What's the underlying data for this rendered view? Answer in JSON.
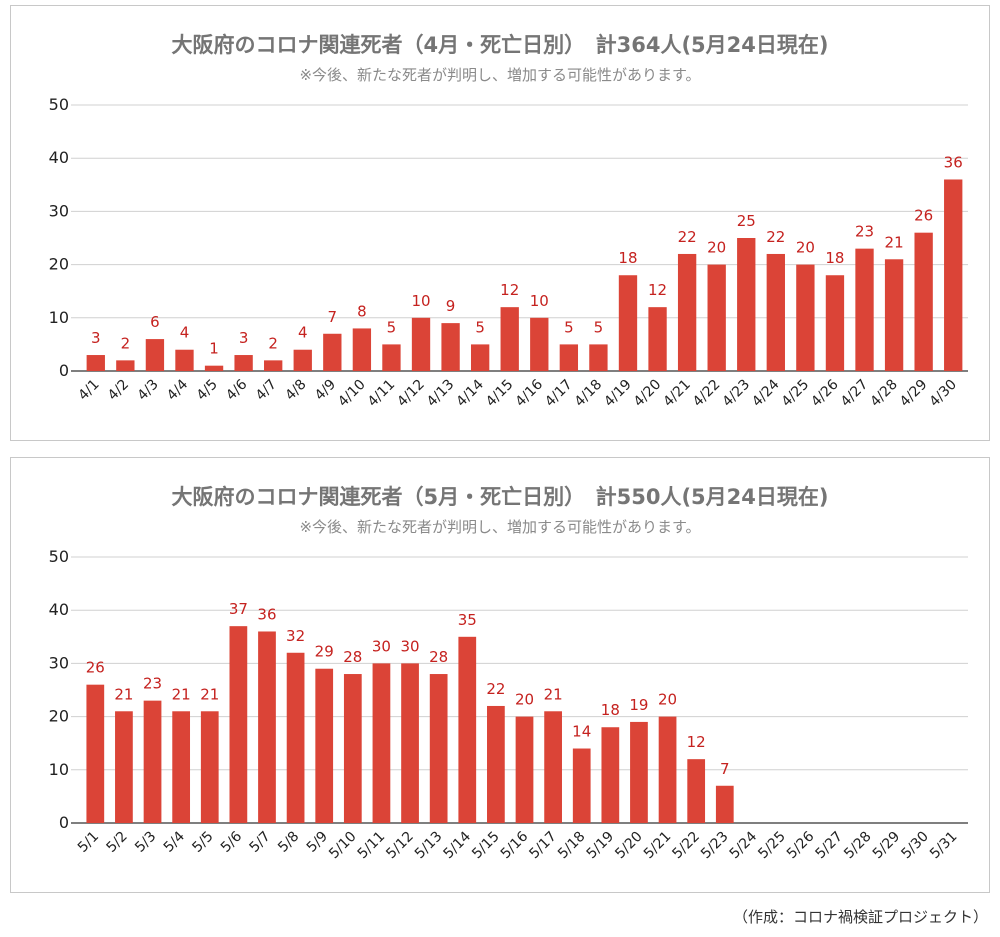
{
  "chart_data": [
    {
      "type": "bar",
      "title": "大阪府のコロナ関連死者（4月・死亡日別）　計364人(5月24日現在)",
      "subtitle": "※今後、新たな死者が判明し、増加する可能性があります。",
      "categories": [
        "4/1",
        "4/2",
        "4/3",
        "4/4",
        "4/5",
        "4/6",
        "4/7",
        "4/8",
        "4/9",
        "4/10",
        "4/11",
        "4/12",
        "4/13",
        "4/14",
        "4/15",
        "4/16",
        "4/17",
        "4/18",
        "4/19",
        "4/20",
        "4/21",
        "4/22",
        "4/23",
        "4/24",
        "4/25",
        "4/26",
        "4/27",
        "4/28",
        "4/29",
        "4/30"
      ],
      "values": [
        3,
        2,
        6,
        4,
        1,
        3,
        2,
        4,
        7,
        8,
        5,
        10,
        9,
        5,
        12,
        10,
        5,
        5,
        18,
        12,
        22,
        20,
        25,
        22,
        20,
        18,
        23,
        21,
        26,
        36
      ],
      "ylim": [
        0,
        50
      ],
      "yticks": [
        0,
        10,
        20,
        30,
        40,
        50
      ],
      "xlabel": "",
      "ylabel": "",
      "grid": true,
      "bar_color": "#db4437",
      "label_color": "#c5221f"
    },
    {
      "type": "bar",
      "title": "大阪府のコロナ関連死者（5月・死亡日別）　計550人(5月24日現在)",
      "subtitle": "※今後、新たな死者が判明し、増加する可能性があります。",
      "categories": [
        "5/1",
        "5/2",
        "5/3",
        "5/4",
        "5/5",
        "5/6",
        "5/7",
        "5/8",
        "5/9",
        "5/10",
        "5/11",
        "5/12",
        "5/13",
        "5/14",
        "5/15",
        "5/16",
        "5/17",
        "5/18",
        "5/19",
        "5/20",
        "5/21",
        "5/22",
        "5/23",
        "5/24",
        "5/25",
        "5/26",
        "5/27",
        "5/28",
        "5/29",
        "5/30",
        "5/31"
      ],
      "values": [
        26,
        21,
        23,
        21,
        21,
        37,
        36,
        32,
        29,
        28,
        30,
        30,
        28,
        35,
        22,
        20,
        21,
        14,
        18,
        19,
        20,
        12,
        7,
        null,
        null,
        null,
        null,
        null,
        null,
        null,
        null
      ],
      "ylim": [
        0,
        50
      ],
      "yticks": [
        0,
        10,
        20,
        30,
        40,
        50
      ],
      "xlabel": "",
      "ylabel": "",
      "grid": true,
      "bar_color": "#db4437",
      "label_color": "#c5221f"
    }
  ],
  "credit": "（作成：コロナ禍検証プロジェクト）"
}
